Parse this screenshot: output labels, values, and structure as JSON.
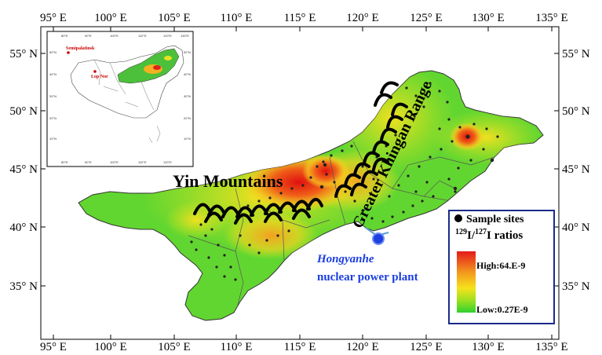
{
  "axes": {
    "lon_labels": [
      "95° E",
      "100° E",
      "105° E",
      "110° E",
      "115° E",
      "120° E",
      "125° E",
      "130° E",
      "135° E"
    ],
    "lat_labels": [
      "55° N",
      "50° N",
      "45° N",
      "40° N",
      "35° N"
    ]
  },
  "labels": {
    "yin_mountains": "Yin Mountains",
    "khingan_range": "Greater Khingan Range",
    "plant_line1": "Hongyanhe",
    "plant_line2": "nuclear power plant"
  },
  "inset": {
    "semipalatinsk": "Semipalatinsk",
    "lop_nor": "Lop Nor"
  },
  "legend": {
    "sample_sites": "Sample sites",
    "ratio_sup1": "129",
    "ratio_i1": "I/",
    "ratio_sup2": "127",
    "ratio_i2": "I ratios",
    "high": "High:64.E-9",
    "low": "Low:0.27E-9"
  },
  "colors": {
    "high": "#e41a1c",
    "mid": "#f5e21b",
    "low": "#2fd12f",
    "sea": "#5a9fd4",
    "plant": "#1f3fe0",
    "legend_border": "#1a2a8a"
  }
}
